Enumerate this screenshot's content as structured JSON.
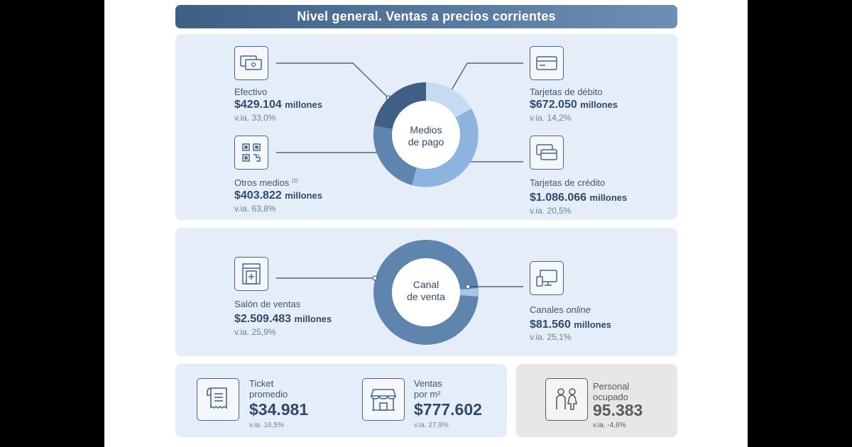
{
  "title": "Nivel general. Ventas a precios corrientes",
  "medios_de_pago": {
    "center_label_1": "Medios",
    "center_label_2": "de pago",
    "efectivo": {
      "label": "Efectivo",
      "value": "$429.104",
      "unit": "millones",
      "via": "v.ia. 33,0%",
      "icon": "cash-icon"
    },
    "otros": {
      "label": "Otros medios",
      "note": "(1)",
      "value": "$403.822",
      "unit": "millones",
      "via": "v.ia. 63,8%",
      "icon": "qr-code-icon"
    },
    "debito": {
      "label": "Tarjetas de débito",
      "value": "$672.050",
      "unit": "millones",
      "via": "v.ia. 14,2%",
      "icon": "debit-card-icon"
    },
    "credito": {
      "label": "Tarjetas de crédito",
      "value": "$1.086.066",
      "unit": "millones",
      "via": "v.ia. 20,5%",
      "icon": "credit-cards-icon"
    },
    "colors": {
      "efectivo": "#3f5f86",
      "otros": "#5f84ad",
      "credito": "#8db3df",
      "debito": "#c6daf0"
    }
  },
  "canal_de_venta": {
    "center_label_1": "Canal",
    "center_label_2": "de venta",
    "salon": {
      "label": "Salón de ventas",
      "value": "$2.509.483",
      "unit": "millones",
      "via": "v.ia. 25,9%",
      "icon": "store-door-icon"
    },
    "online": {
      "label_prefix": "Canales ",
      "label_em": "online",
      "value": "$81.560",
      "unit": "millones",
      "via": "v.ia. 25,1%",
      "icon": "computer-icon"
    },
    "colors": {
      "salon": "#5f84ad",
      "online": "#a8c5e6"
    }
  },
  "kpis": {
    "ticket": {
      "label_1": "Ticket",
      "label_2": "promedio",
      "value": "$34.981",
      "via": "v.ia. 16,5%",
      "icon": "receipt-icon"
    },
    "ventas_m2": {
      "label_1": "Ventas",
      "label_2": "por m²",
      "value": "$777.602",
      "via": "v.ia. 27,9%",
      "icon": "shop-icon"
    },
    "personal": {
      "label_1": "Personal",
      "label_2": "ocupado",
      "value": "95.383",
      "via": "v.ia. -4,6%",
      "icon": "people-icon"
    }
  }
}
